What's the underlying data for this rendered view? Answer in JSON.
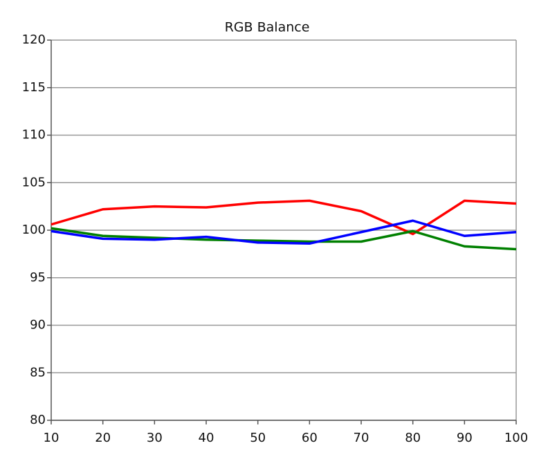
{
  "chart_data": {
    "type": "line",
    "title": "RGB Balance",
    "x": [
      10,
      20,
      30,
      40,
      50,
      60,
      70,
      80,
      90,
      100
    ],
    "series": [
      {
        "color": "#ff0000",
        "values": [
          100.6,
          102.2,
          102.5,
          102.4,
          102.9,
          103.1,
          102.0,
          99.6,
          103.1,
          102.8
        ]
      },
      {
        "color": "#008000",
        "values": [
          100.2,
          99.4,
          99.2,
          99.0,
          98.9,
          98.8,
          98.8,
          99.9,
          98.3,
          98.0
        ]
      },
      {
        "color": "#0000ff",
        "values": [
          99.9,
          99.1,
          99.0,
          99.3,
          98.7,
          98.6,
          99.8,
          101.0,
          99.4,
          99.8
        ]
      }
    ],
    "xlim": [
      10,
      100
    ],
    "xticks": [
      10,
      20,
      30,
      40,
      50,
      60,
      70,
      80,
      90,
      100
    ],
    "ylim": [
      80,
      120
    ],
    "yticks": [
      80,
      85,
      90,
      95,
      100,
      105,
      110,
      115,
      120
    ],
    "grid": true
  }
}
